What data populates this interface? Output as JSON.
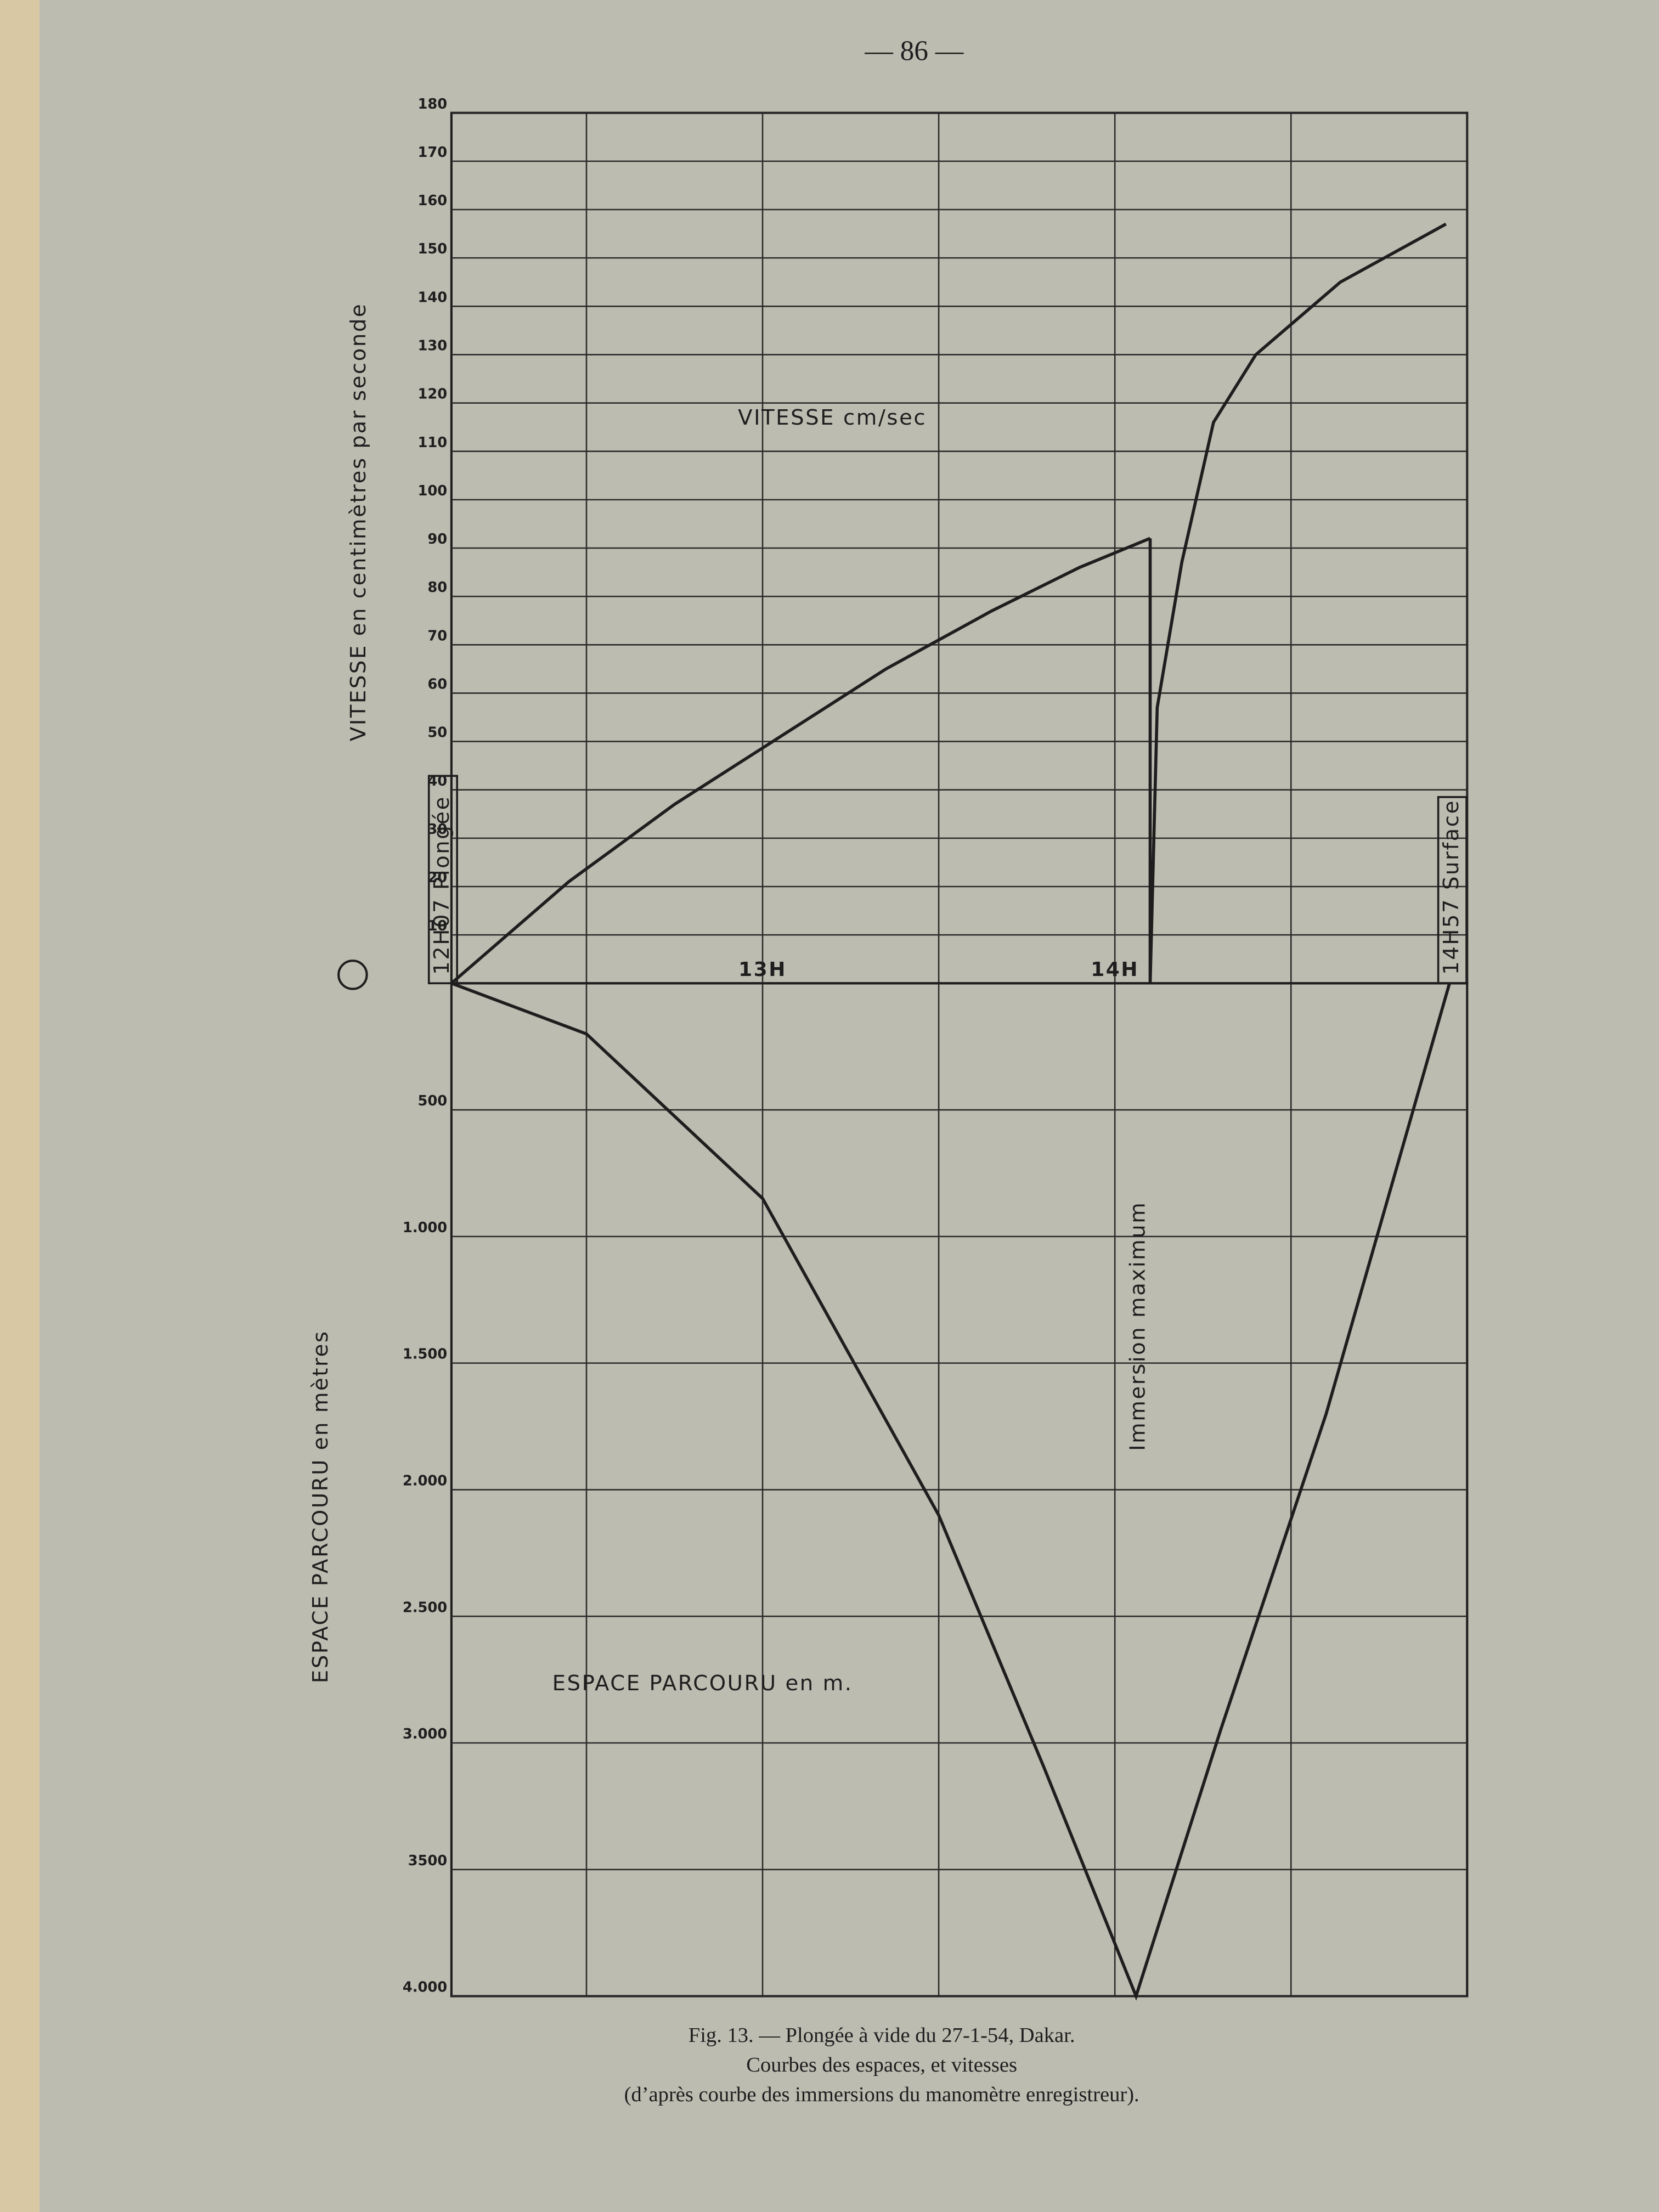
{
  "page_number": "— 86 —",
  "caption": [
    "Fig. 13. — Plongée à vide du 27-1-54, Dakar.",
    "Courbes des espaces, et vitesses",
    "(d’après courbe des immersions du manomètre enregistreur)."
  ],
  "chart_data": [
    {
      "type": "line",
      "title": "VITESSE cm/sec",
      "ylabel": "VITESSE en centimètres par seconde",
      "xlim": [
        12.1167,
        15
      ],
      "ylim": [
        0,
        180
      ],
      "xticks": [
        {
          "value": 13,
          "label": "13H"
        },
        {
          "value": 14,
          "label": "14H"
        }
      ],
      "xgrid": [
        12.5,
        13,
        13.5,
        14,
        14.5,
        15
      ],
      "yticks": [
        10,
        20,
        30,
        40,
        50,
        60,
        70,
        80,
        90,
        100,
        110,
        120,
        130,
        140,
        150,
        160,
        170,
        180
      ],
      "grid": true,
      "annotations": [
        {
          "text": "12H07 Plongée",
          "x": 12.1167
        },
        {
          "text": "14H57 Surface",
          "x": 14.95
        }
      ],
      "series": [
        {
          "color": "#1e1e1e",
          "x": [
            12.1167,
            12.45,
            12.75,
            13.05,
            13.35,
            13.65,
            13.9,
            14.1
          ],
          "values": [
            0,
            21,
            37,
            51,
            65,
            77,
            86,
            92
          ]
        },
        {
          "color": "#1e1e1e",
          "x": [
            14.1,
            14.1,
            14.12,
            14.19,
            14.28,
            14.4,
            14.64,
            14.94
          ],
          "values": [
            92,
            0,
            57,
            87,
            116,
            130,
            145,
            157
          ]
        }
      ]
    },
    {
      "type": "line",
      "title": "ESPACE PARCOURU en m.",
      "ylabel": "ESPACE PARCOURU en mètres",
      "xlim": [
        12.1167,
        15
      ],
      "ylim": [
        0,
        4000
      ],
      "y_inverted": true,
      "yticks": [
        500,
        {
          "value": 1000,
          "label": "1.000"
        },
        {
          "value": 1500,
          "label": "1.500"
        },
        {
          "value": 2000,
          "label": "2.000"
        },
        {
          "value": 2500,
          "label": "2.500"
        },
        {
          "value": 3000,
          "label": "3.000"
        },
        3500,
        {
          "value": 4000,
          "label": "4.000"
        }
      ],
      "grid": true,
      "annotations": [
        {
          "text": "Immersion maximum",
          "x": 14.06
        }
      ],
      "series": [
        {
          "color": "#1e1e1e",
          "x": [
            12.1167,
            12.5,
            13,
            13.5,
            13.8,
            14.06,
            14.3,
            14.6,
            14.95
          ],
          "values": [
            0,
            200,
            850,
            2100,
            3100,
            4000,
            2950,
            1700,
            0
          ]
        }
      ]
    }
  ]
}
